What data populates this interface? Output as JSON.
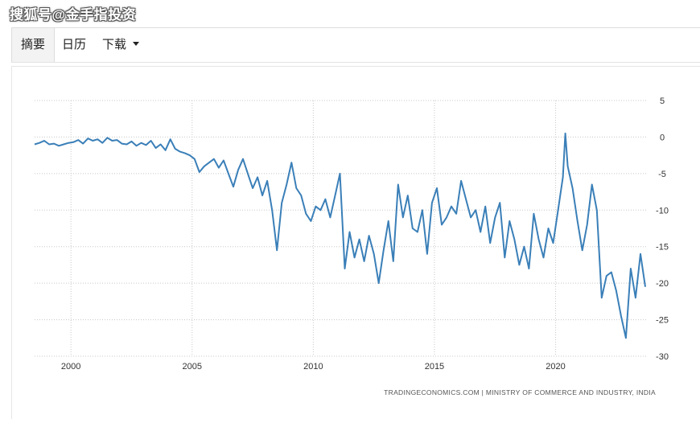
{
  "watermark": "搜狐号@金手指投资",
  "tabs": [
    {
      "label": "摘要",
      "active": true
    },
    {
      "label": "日历",
      "active": false
    },
    {
      "label": "下载",
      "active": false
    }
  ],
  "colors": {
    "line": "#3a7fb8",
    "grid": "#c8c8c8",
    "text": "#333333"
  },
  "chart_data": {
    "type": "line",
    "title": "",
    "xlabel": "",
    "ylabel": "",
    "source": "TRADINGECONOMICS.COM | MINISTRY OF COMMERCE AND INDUSTRY, INDIA",
    "ylim": [
      -30,
      5
    ],
    "xlim": [
      1998.5,
      2023.8
    ],
    "yticks": [
      5,
      0,
      -5,
      -10,
      -15,
      -20,
      -25,
      -30
    ],
    "xticks": [
      2000,
      2005,
      2010,
      2015,
      2020
    ],
    "y_axis_position": "right",
    "grid": true,
    "series": [
      {
        "x": [
          1998.5,
          1998.7,
          1998.9,
          1999.1,
          1999.3,
          1999.5,
          1999.7,
          1999.9,
          2000.1,
          2000.3,
          2000.5,
          2000.7,
          2000.9,
          2001.1,
          2001.3,
          2001.5,
          2001.7,
          2001.9,
          2002.1,
          2002.3,
          2002.5,
          2002.7,
          2002.9,
          2003.1,
          2003.3,
          2003.5,
          2003.7,
          2003.9,
          2004.1,
          2004.3,
          2004.5,
          2004.7,
          2004.9,
          2005.1,
          2005.3,
          2005.5,
          2005.7,
          2005.9,
          2006.1,
          2006.3,
          2006.5,
          2006.7,
          2006.9,
          2007.1,
          2007.3,
          2007.5,
          2007.7,
          2007.9,
          2008.1,
          2008.3,
          2008.5,
          2008.7,
          2008.9,
          2009.1,
          2009.3,
          2009.5,
          2009.7,
          2009.9,
          2010.1,
          2010.3,
          2010.5,
          2010.7,
          2010.9,
          2011.1,
          2011.3,
          2011.5,
          2011.7,
          2011.9,
          2012.1,
          2012.3,
          2012.5,
          2012.7,
          2012.9,
          2013.1,
          2013.3,
          2013.5,
          2013.7,
          2013.9,
          2014.1,
          2014.3,
          2014.5,
          2014.7,
          2014.9,
          2015.1,
          2015.3,
          2015.5,
          2015.7,
          2015.9,
          2016.1,
          2016.3,
          2016.5,
          2016.7,
          2016.9,
          2017.1,
          2017.3,
          2017.5,
          2017.7,
          2017.9,
          2018.1,
          2018.3,
          2018.5,
          2018.7,
          2018.9,
          2019.1,
          2019.3,
          2019.5,
          2019.7,
          2019.9,
          2020.1,
          2020.3,
          2020.4,
          2020.5,
          2020.7,
          2020.9,
          2021.1,
          2021.3,
          2021.5,
          2021.7,
          2021.9,
          2022.1,
          2022.3,
          2022.5,
          2022.7,
          2022.9,
          2023.1,
          2023.3,
          2023.5,
          2023.7
        ],
        "y": [
          -1.0,
          -0.8,
          -0.5,
          -1.0,
          -0.9,
          -1.2,
          -1.0,
          -0.8,
          -0.7,
          -0.4,
          -0.9,
          -0.2,
          -0.5,
          -0.3,
          -0.8,
          -0.1,
          -0.5,
          -0.4,
          -0.9,
          -1.0,
          -0.6,
          -1.2,
          -0.8,
          -1.1,
          -0.5,
          -1.5,
          -1.0,
          -1.8,
          -0.3,
          -1.6,
          -2.0,
          -2.2,
          -2.5,
          -3.0,
          -4.8,
          -4.0,
          -3.5,
          -3.0,
          -4.2,
          -3.2,
          -5.0,
          -6.8,
          -4.5,
          -3.0,
          -5.0,
          -7.0,
          -5.5,
          -8.0,
          -6.0,
          -10.0,
          -15.5,
          -9.0,
          -6.5,
          -3.5,
          -7.0,
          -8.0,
          -10.5,
          -11.5,
          -9.5,
          -10.0,
          -8.5,
          -11.0,
          -8.0,
          -5.0,
          -18.0,
          -13.0,
          -16.5,
          -14.0,
          -17.0,
          -13.5,
          -16.0,
          -20.0,
          -15.5,
          -11.5,
          -17.0,
          -6.5,
          -11.0,
          -8.0,
          -12.5,
          -13.0,
          -10.0,
          -16.0,
          -9.0,
          -7.0,
          -12.0,
          -11.0,
          -9.5,
          -10.5,
          -6.0,
          -8.5,
          -11.0,
          -10.0,
          -13.0,
          -9.5,
          -14.5,
          -11.0,
          -9.0,
          -16.5,
          -11.5,
          -14.0,
          -17.5,
          -15.0,
          -18.0,
          -10.5,
          -14.0,
          -16.5,
          -12.5,
          -14.5,
          -10.0,
          -5.5,
          0.5,
          -4.0,
          -7.0,
          -11.5,
          -15.5,
          -12.0,
          -6.5,
          -10.0,
          -22.0,
          -19.0,
          -18.5,
          -21.0,
          -24.5,
          -27.5,
          -18.0,
          -22.0,
          -16.0,
          -20.5
        ]
      }
    ]
  }
}
